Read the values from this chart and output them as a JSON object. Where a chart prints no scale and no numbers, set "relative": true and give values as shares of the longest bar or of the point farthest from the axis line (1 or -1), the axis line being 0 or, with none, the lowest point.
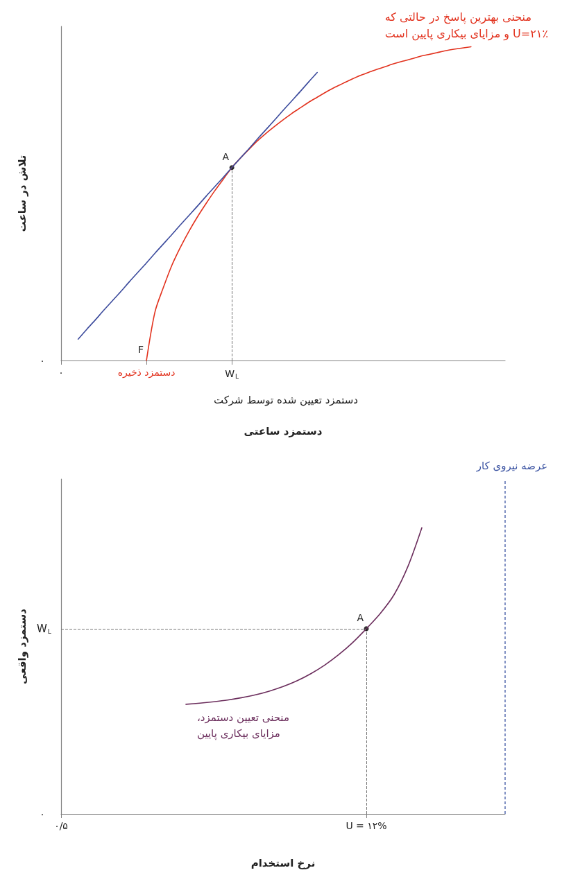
{
  "chart_data": [
    {
      "type": "line",
      "xlabel": "دستمزد ساعتی",
      "ylabel": "تلاش در ساعت",
      "relative": true,
      "marker": "none",
      "line_style": "solid",
      "categories": [
        "۰",
        null,
        null,
        null,
        null,
        null,
        null,
        null,
        null,
        null,
        "دستمزد ذخیره",
        null,
        null,
        null,
        null,
        null,
        null,
        null,
        null,
        null,
        "W$_{L}$",
        null,
        null,
        null,
        null,
        null,
        null,
        null,
        null,
        null,
        null,
        null,
        null,
        null,
        null,
        null,
        null,
        null,
        null,
        null,
        null,
        null,
        null,
        null,
        null,
        null,
        null,
        null,
        null,
        null,
        null,
        null,
        null
      ],
      "series": [
        {
          "name": "منحنی بهترین پاسخ در حالتی که U=۲۱٪ و مزایای بیکاری پایین است",
          "color": "#e2311d",
          "values": [
            null,
            null,
            null,
            null,
            null,
            null,
            null,
            null,
            null,
            null,
            0,
            0.155,
            0.234,
            0.305,
            0.362,
            0.413,
            0.459,
            0.501,
            0.541,
            0.578,
            0.615,
            0.645,
            0.673,
            0.7,
            0.724,
            0.746,
            0.767,
            0.787,
            0.805,
            0.823,
            0.839,
            0.855,
            0.87,
            0.883,
            0.896,
            0.908,
            0.918,
            0.928,
            0.937,
            0.946,
            0.954,
            0.961,
            0.969,
            0.975,
            0.981,
            0.987,
            0.992,
            0.996,
            1,
            null,
            null,
            null,
            null
          ]
        },
        {
          "color": "#3b4a9c",
          "values": [
            null,
            null,
            0.068,
            0.099,
            0.129,
            0.16,
            0.19,
            0.22,
            0.251,
            0.281,
            0.311,
            0.342,
            0.372,
            0.402,
            0.433,
            0.463,
            0.493,
            0.524,
            0.554,
            0.584,
            0.615,
            0.645,
            0.675,
            0.706,
            0.736,
            0.766,
            0.797,
            0.827,
            0.857,
            0.888,
            0.918,
            null,
            null,
            null,
            null,
            null,
            null,
            null,
            null,
            null,
            null,
            null,
            null,
            null,
            null,
            null,
            null,
            null,
            null,
            null,
            null,
            null,
            null
          ]
        },
        {
          "type": "lollipop",
          "color": "#000000",
          "line_style": "dashed",
          "values": [
            null,
            null,
            null,
            null,
            null,
            null,
            null,
            null,
            null,
            null,
            null,
            null,
            null,
            null,
            null,
            null,
            null,
            null,
            null,
            null,
            0.615,
            null,
            null,
            null,
            null,
            null,
            null,
            null,
            null,
            null,
            null,
            null,
            null,
            null,
            null,
            null,
            null,
            null,
            null,
            null,
            null,
            null,
            null,
            null,
            null,
            null,
            null,
            null,
            null,
            null,
            null,
            null,
            null
          ]
        }
      ],
      "annotations": [
        {
          "text": "A",
          "x": "W$_{L}$",
          "y": 0.615
        },
        {
          "text": "F",
          "x": "دستمزد ذخیره",
          "y": 0
        },
        "۰",
        "دستمزد تعیین شده توسط شرکت"
      ]
    },
    {
      "type": "line",
      "xlabel": "نرخ استخدام",
      "ylabel": "دستمزد واقعی",
      "relative": true,
      "marker": "none",
      "line_style": "solid",
      "categories": [
        "۰/۵",
        null,
        null,
        null,
        null,
        null,
        null,
        null,
        null,
        null,
        null,
        null,
        null,
        null,
        null,
        null,
        null,
        null,
        null,
        null,
        null,
        null,
        "U = ۱۲%",
        null,
        null,
        null,
        null,
        null,
        null,
        null,
        null,
        null,
        null
      ],
      "series": [
        {
          "name": "منحنی تعیین دستمزد، مزایای بیکاری پایین",
          "color": "#6b2d5c",
          "values": [
            null,
            null,
            null,
            null,
            null,
            null,
            null,
            null,
            null,
            0.383,
            0.387,
            0.392,
            0.398,
            0.406,
            0.416,
            0.429,
            0.445,
            0.465,
            0.49,
            0.52,
            0.556,
            0.598,
            0.647,
            0.7,
            0.766,
            0.865,
            1,
            null,
            null,
            null,
            null,
            null,
            null
          ]
        },
        {
          "type": "lollipop",
          "color": "#000000",
          "line_style": "dashed",
          "values": [
            null,
            null,
            null,
            null,
            null,
            null,
            null,
            null,
            null,
            null,
            null,
            null,
            null,
            null,
            null,
            null,
            null,
            null,
            null,
            null,
            null,
            null,
            0.647,
            null,
            null,
            null,
            null,
            null,
            null,
            null,
            null,
            null,
            null
          ]
        }
      ],
      "annotations": [
        {
          "text": "A",
          "x": "U = ۱۲%",
          "y": 0.647
        },
        "۰",
        "عرضه نیروی کار"
      ],
      "ref_lines": [
        {
          "axis": "y",
          "value": 0.647,
          "label": "W$_{L}$",
          "color": "#777777",
          "line_style": "dashed"
        }
      ]
    }
  ]
}
